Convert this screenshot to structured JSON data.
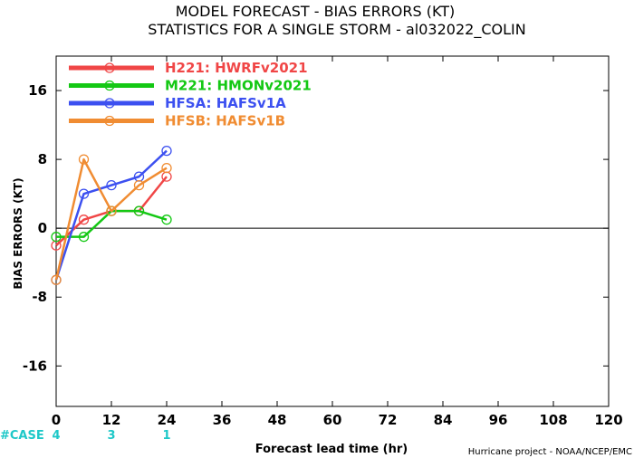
{
  "chart_data": {
    "type": "line",
    "title": "MODEL FORECAST - BIAS ERRORS (KT)",
    "subtitle": "STATISTICS FOR A SINGLE STORM - al032022_COLIN",
    "ylabel": "BIAS ERRORS (KT)",
    "xlabel": "Forecast lead time (hr)",
    "credit": "Hurricane project - NOAA/NCEP/EMC",
    "xlim": [
      0,
      120
    ],
    "ylim": [
      -20.7,
      20
    ],
    "x_ticks": [
      "0",
      "12",
      "24",
      "36",
      "48",
      "60",
      "72",
      "84",
      "96",
      "108",
      "120"
    ],
    "y_ticks": [
      "16",
      "8",
      "0",
      "-8",
      "-16"
    ],
    "zero_line": true,
    "grid": false,
    "legend_position": "top-left",
    "case_label": "#CASE",
    "cases": [
      {
        "x": 0,
        "count": "4"
      },
      {
        "x": 12,
        "count": "3"
      },
      {
        "x": 24,
        "count": "1"
      }
    ],
    "series": [
      {
        "name": "H221: HWRFv2021",
        "color": "#f04646",
        "x": [
          0,
          6,
          12,
          18,
          24
        ],
        "y": [
          -2,
          1,
          2,
          2,
          6
        ]
      },
      {
        "name": "M221: HMONv2021",
        "color": "#14c814",
        "x": [
          0,
          6,
          12,
          18,
          24
        ],
        "y": [
          -1,
          -1,
          2,
          2,
          1
        ]
      },
      {
        "name": "HFSA: HAFSv1A",
        "color": "#3c50f0",
        "x": [
          0,
          6,
          12,
          18,
          24
        ],
        "y": [
          -6,
          4,
          5,
          6,
          9
        ]
      },
      {
        "name": "HFSB: HAFSv1B",
        "color": "#f08c32",
        "x": [
          0,
          6,
          12,
          18,
          24
        ],
        "y": [
          -6,
          8,
          2,
          5,
          7
        ]
      }
    ]
  }
}
